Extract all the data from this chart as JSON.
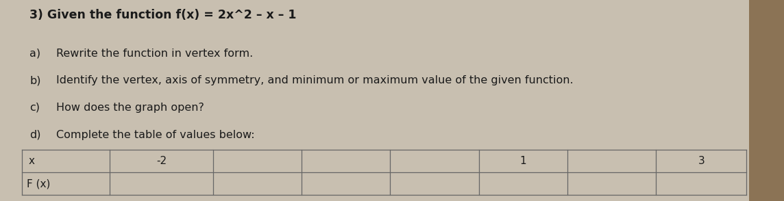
{
  "background_color": "#c8bfb0",
  "paper_color": "#e8e3d8",
  "title": "3) Given the function f(x) = 2x^2 – x – 1",
  "title_fontsize": 12.5,
  "items": [
    [
      "a)",
      "Rewrite the function in vertex form."
    ],
    [
      "b)",
      "Identify the vertex, axis of symmetry, and minimum or maximum value of the given function."
    ],
    [
      "c)",
      "How does the graph open?"
    ],
    [
      "d)",
      "Complete the table of values below:"
    ]
  ],
  "item_fontsize": 11.5,
  "table_headers": [
    "x",
    "-2",
    "",
    "",
    "",
    "1",
    "",
    "3"
  ],
  "table_row2": [
    "F (x)",
    "",
    "",
    "",
    "",
    "",
    "",
    ""
  ],
  "text_color": "#1a1a1a",
  "line_color": "#666666",
  "right_edge_color": "#8b7355"
}
